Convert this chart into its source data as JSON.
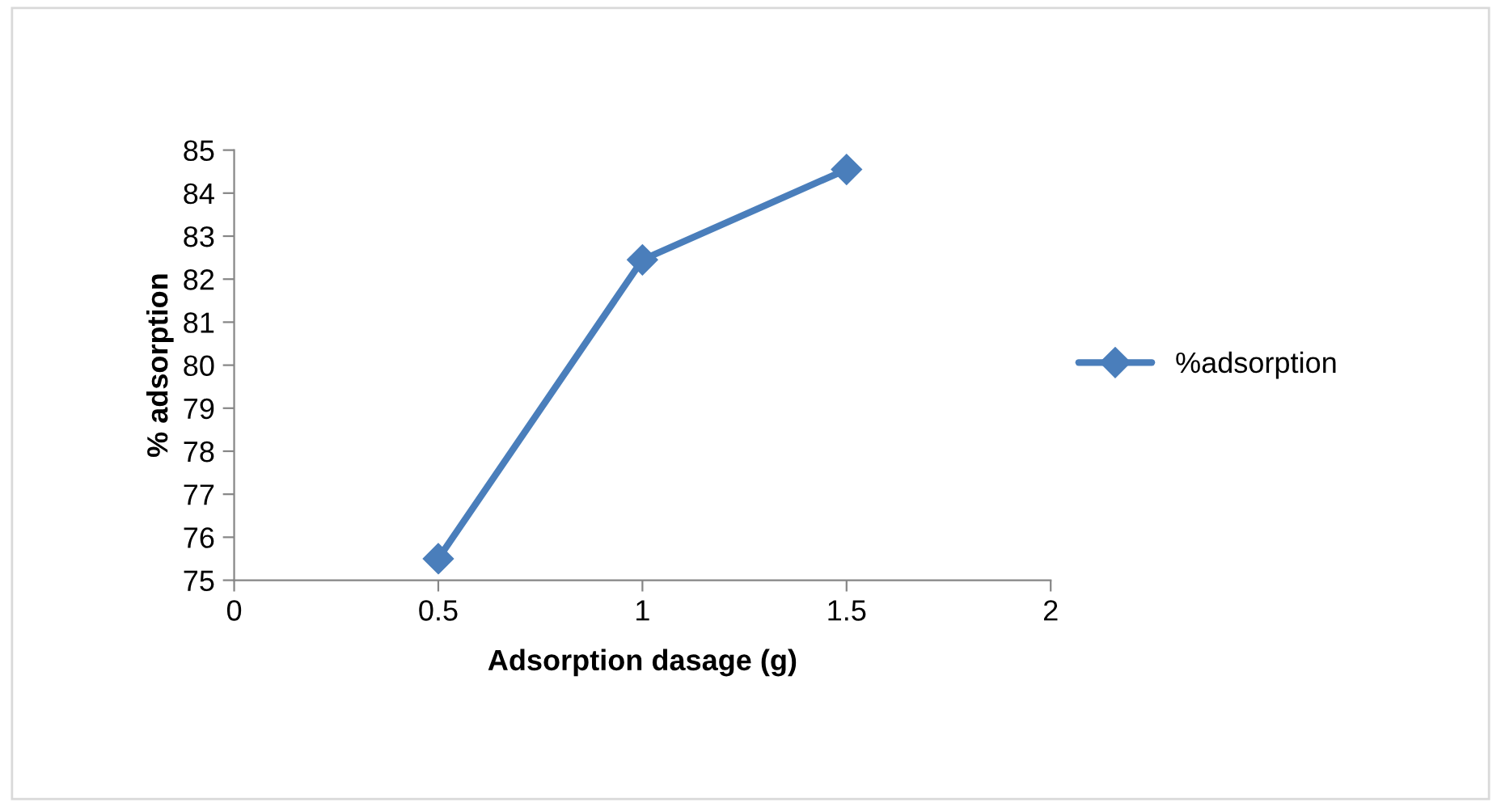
{
  "chart_data": {
    "type": "line",
    "xlabel": "Adsorption dasage (g)",
    "ylabel": "% adsorption",
    "x": [
      0.5,
      1,
      1.5
    ],
    "series": [
      {
        "name": "%adsorption",
        "color": "#4a7ebb",
        "values": [
          75.5,
          82.45,
          84.55
        ]
      }
    ],
    "xlim": [
      0,
      2
    ],
    "xticks": [
      0,
      0.5,
      1,
      1.5,
      2
    ],
    "ylim": [
      75,
      85
    ],
    "yticks": [
      75,
      76,
      77,
      78,
      79,
      80,
      81,
      82,
      83,
      84,
      85
    ],
    "grid": false,
    "legend": "right",
    "marker": "diamond",
    "line_style": "solid"
  }
}
